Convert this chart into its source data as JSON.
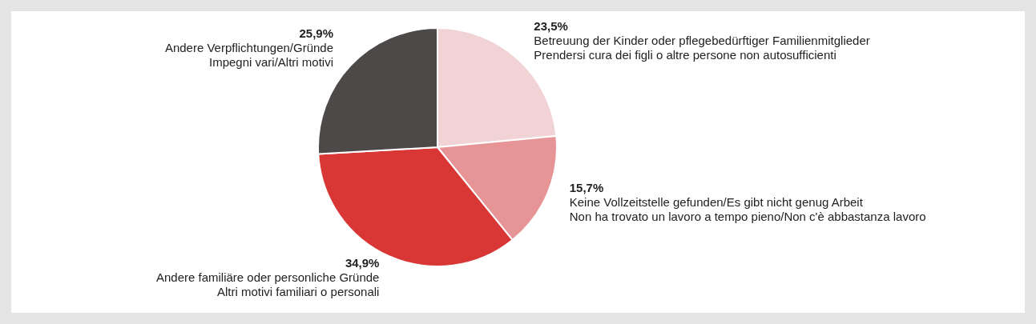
{
  "chart_data": {
    "type": "pie",
    "categories": [
      "Betreuung der Kinder oder pflegebedürftiger Familienmitglieder\nPrendersi cura dei figli o altre persone non autosufficienti",
      "Keine Vollzeitstelle gefunden/Es gibt nicht genug Arbeit\nNon ha trovato un lavoro a tempo pieno/Non c'è abbastanza lavoro",
      "Andere familiäre oder personliche Gründe\nAltri motivi familiari o personali",
      "Andere Verpflichtungen/Gründe\nImpegni vari/Altri motivi"
    ],
    "values": [
      23.5,
      15.7,
      34.9,
      25.9
    ],
    "value_labels": [
      "23,5%",
      "15,7%",
      "34,9%",
      "25,9%"
    ],
    "colors": [
      "#f2d3d5",
      "#e69496",
      "#d93636",
      "#4d4948"
    ],
    "legend": false
  }
}
